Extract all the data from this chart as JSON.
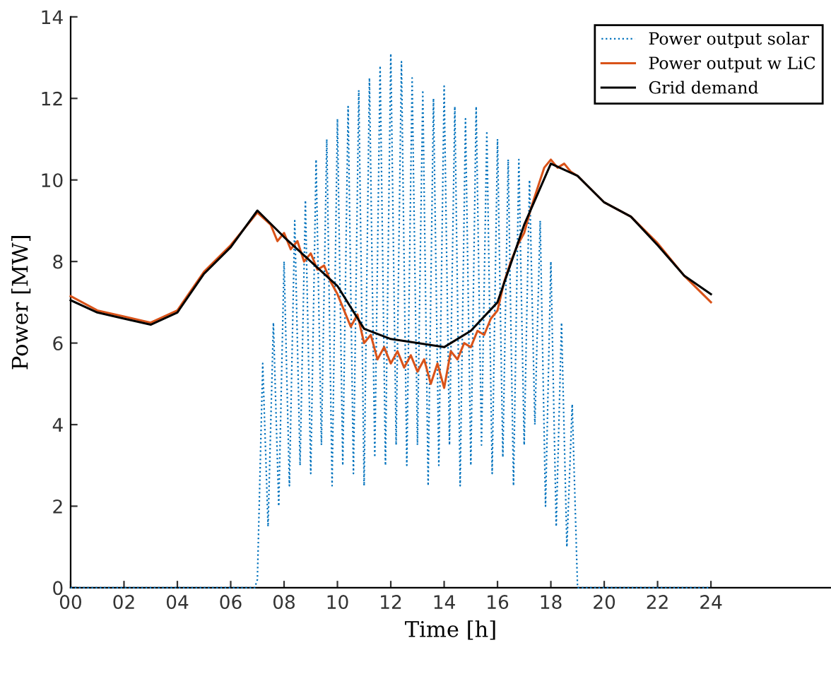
{
  "chart_data": {
    "type": "line",
    "xlabel": "Time [h]",
    "ylabel": "Power [MW]",
    "xlim": [
      0,
      28.5
    ],
    "ylim": [
      0,
      14
    ],
    "xticks": [
      {
        "value": 0,
        "label": "00"
      },
      {
        "value": 2,
        "label": "02"
      },
      {
        "value": 4,
        "label": "04"
      },
      {
        "value": 6,
        "label": "06"
      },
      {
        "value": 8,
        "label": "08"
      },
      10,
      12,
      14,
      16,
      18,
      20,
      22,
      24
    ],
    "yticks": [
      0,
      2,
      4,
      6,
      8,
      10,
      12,
      14
    ],
    "grid": false,
    "legend": "top right",
    "series": [
      {
        "name": "Power output solar",
        "color": "#0072bd",
        "line_style": "dotted",
        "x": [
          0,
          6.9,
          7.0,
          7.2,
          7.4,
          7.6,
          7.8,
          8.0,
          8.2,
          8.4,
          8.6,
          8.8,
          9.0,
          9.2,
          9.4,
          9.6,
          9.8,
          10.0,
          10.2,
          10.4,
          10.6,
          10.8,
          11.0,
          11.2,
          11.4,
          11.6,
          11.8,
          12.0,
          12.2,
          12.4,
          12.6,
          12.8,
          13.0,
          13.2,
          13.4,
          13.6,
          13.8,
          14.0,
          14.2,
          14.4,
          14.6,
          14.8,
          15.0,
          15.2,
          15.4,
          15.6,
          15.8,
          16.0,
          16.2,
          16.4,
          16.6,
          16.8,
          17.0,
          17.2,
          17.4,
          17.6,
          17.8,
          18.0,
          18.2,
          18.4,
          18.6,
          18.8,
          19.0,
          24
        ],
        "values": [
          0,
          0,
          0.2,
          5.5,
          1.5,
          6.5,
          2.0,
          8.0,
          2.5,
          9.0,
          3.0,
          9.5,
          2.8,
          10.5,
          3.5,
          11.0,
          2.5,
          11.5,
          3.0,
          11.8,
          2.8,
          12.2,
          2.5,
          12.5,
          3.2,
          12.8,
          3.0,
          13.1,
          3.5,
          12.9,
          3.0,
          12.5,
          3.5,
          12.2,
          2.5,
          12.0,
          3.0,
          12.3,
          3.5,
          11.8,
          2.5,
          11.5,
          3.0,
          11.8,
          3.5,
          11.2,
          2.8,
          11.0,
          3.2,
          10.5,
          2.5,
          10.5,
          3.5,
          10.0,
          4.0,
          9.0,
          2.0,
          8.0,
          1.5,
          6.5,
          1.0,
          4.5,
          0,
          0
        ]
      },
      {
        "name": "Power output w LiC",
        "color": "#d95319",
        "line_style": "solid",
        "x": [
          0,
          1,
          2,
          3,
          4,
          5,
          6,
          7,
          7.5,
          7.75,
          8,
          8.25,
          8.5,
          8.75,
          9,
          9.25,
          9.5,
          9.75,
          10,
          10.25,
          10.5,
          10.75,
          11,
          11.25,
          11.5,
          11.75,
          12,
          12.25,
          12.5,
          12.75,
          13,
          13.25,
          13.5,
          13.75,
          14,
          14.25,
          14.5,
          14.75,
          15,
          15.25,
          15.5,
          15.75,
          16,
          16.25,
          16.5,
          16.75,
          17,
          17.25,
          17.5,
          17.75,
          18,
          18.25,
          18.5,
          18.75,
          19,
          20,
          21,
          22,
          23,
          24
        ],
        "values": [
          7.15,
          6.8,
          6.65,
          6.5,
          6.8,
          7.75,
          8.4,
          9.2,
          8.9,
          8.5,
          8.7,
          8.3,
          8.5,
          8.0,
          8.2,
          7.8,
          7.9,
          7.5,
          7.2,
          6.8,
          6.4,
          6.7,
          6.0,
          6.2,
          5.6,
          5.9,
          5.5,
          5.8,
          5.4,
          5.7,
          5.3,
          5.6,
          5.0,
          5.5,
          4.9,
          5.8,
          5.6,
          6.0,
          5.9,
          6.3,
          6.2,
          6.6,
          6.8,
          7.5,
          8.0,
          8.4,
          8.7,
          9.3,
          9.8,
          10.3,
          10.5,
          10.3,
          10.4,
          10.2,
          10.1,
          9.45,
          9.1,
          8.45,
          7.65,
          7.0
        ]
      },
      {
        "name": "Grid demand",
        "color": "#000000",
        "line_style": "solid",
        "x": [
          0,
          1,
          2,
          3,
          4,
          5,
          6,
          7,
          8,
          9,
          10,
          11,
          12,
          13,
          14,
          15,
          16,
          17,
          18,
          19,
          20,
          21,
          22,
          23,
          24
        ],
        "values": [
          7.05,
          6.75,
          6.6,
          6.45,
          6.75,
          7.7,
          8.35,
          9.25,
          8.6,
          8.0,
          7.4,
          6.35,
          6.1,
          6.0,
          5.9,
          6.3,
          7.0,
          8.9,
          10.4,
          10.1,
          9.45,
          9.1,
          8.4,
          7.65,
          7.2
        ]
      }
    ]
  }
}
